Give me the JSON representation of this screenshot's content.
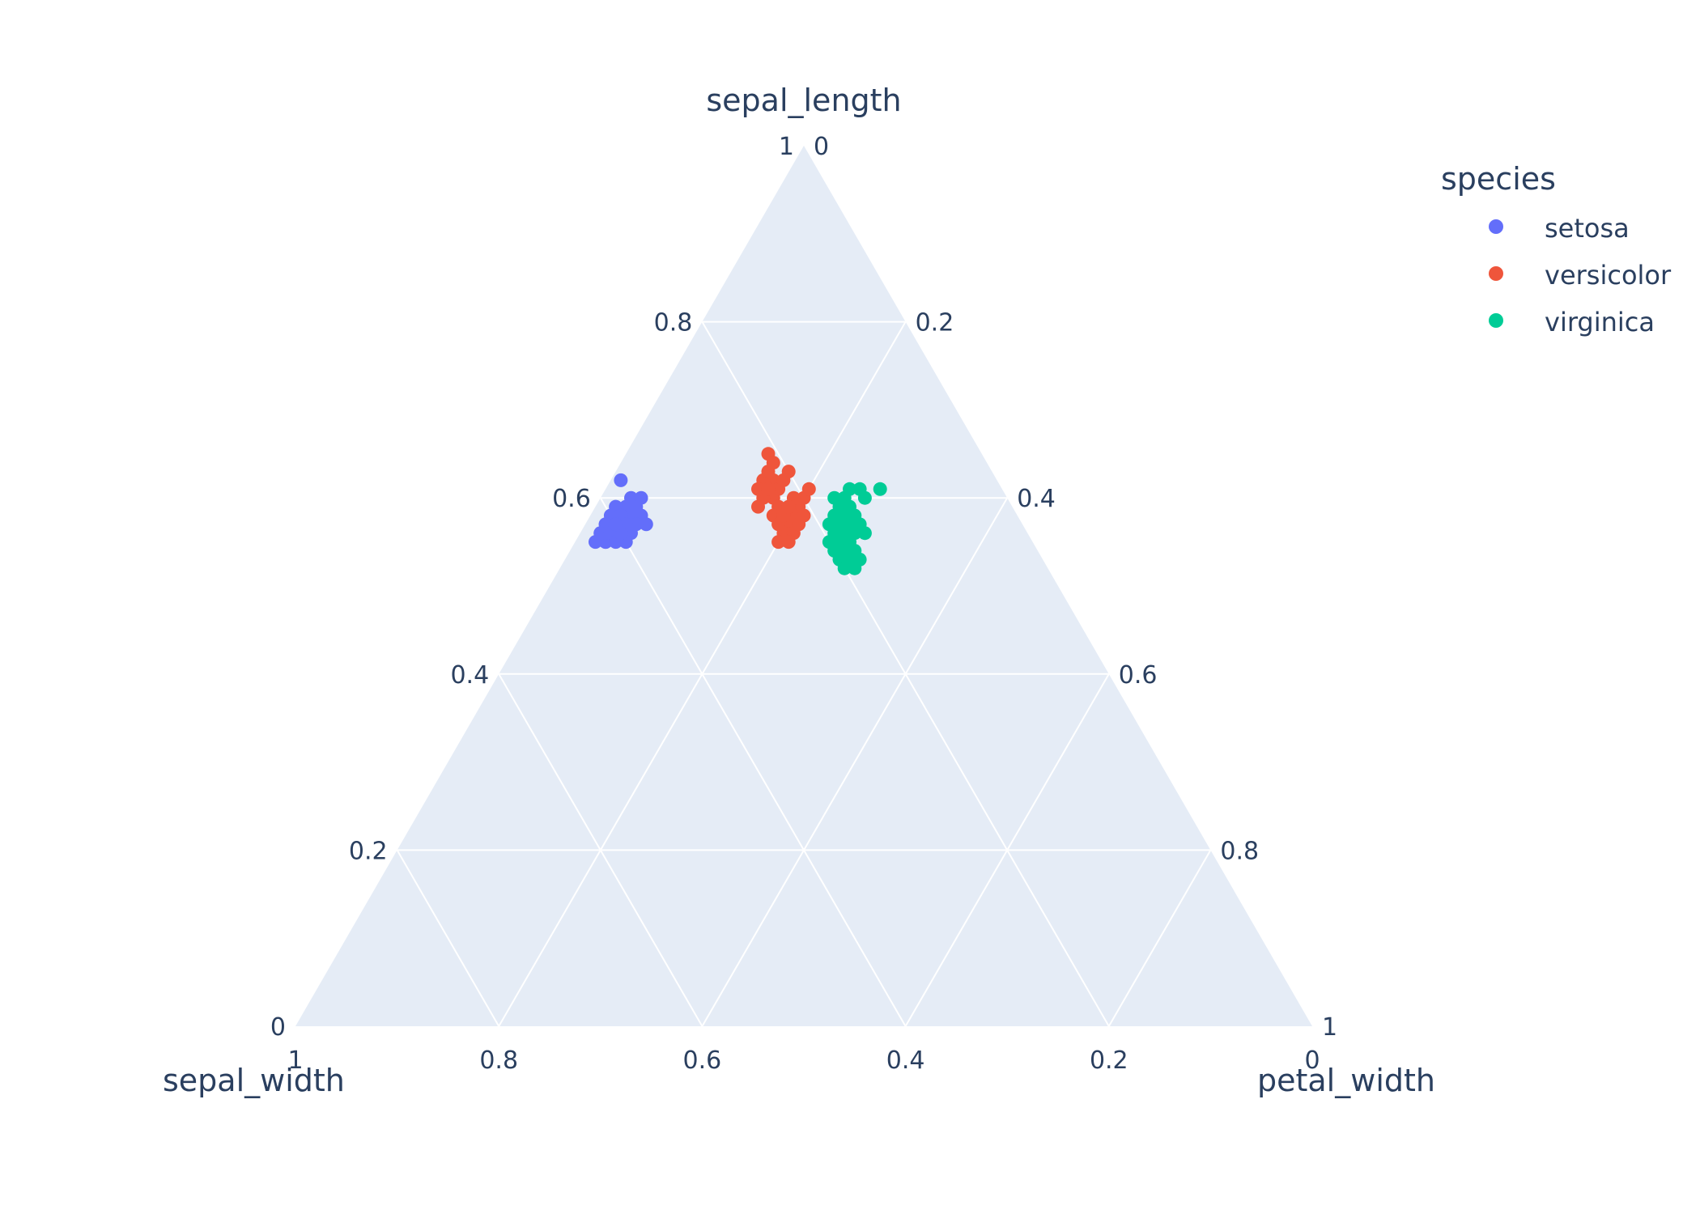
{
  "chart_data": {
    "type": "scatter",
    "subtype": "ternary",
    "axes": {
      "a": {
        "title": "sepal_length",
        "ticks": [
          "0",
          "0.2",
          "0.4",
          "0.6",
          "0.8",
          "1"
        ]
      },
      "b": {
        "title": "sepal_width",
        "ticks": [
          "1",
          "0.8",
          "0.6",
          "0.4",
          "0.2",
          "0"
        ]
      },
      "c": {
        "title": "petal_width",
        "ticks": [
          "0",
          "0.2",
          "0.4",
          "0.6",
          "0.8",
          "1"
        ]
      }
    },
    "grid": true,
    "plot_background": "#e5ecf6",
    "legend": {
      "title": "species",
      "placement": "top-right"
    },
    "series": [
      {
        "name": "setosa",
        "color": "#636efa",
        "points": [
          [
            0.62,
            0.37,
            0.01
          ],
          [
            0.6,
            0.37,
            0.03
          ],
          [
            0.58,
            0.38,
            0.04
          ],
          [
            0.57,
            0.4,
            0.03
          ],
          [
            0.56,
            0.4,
            0.04
          ],
          [
            0.55,
            0.42,
            0.03
          ],
          [
            0.57,
            0.39,
            0.04
          ],
          [
            0.56,
            0.41,
            0.03
          ],
          [
            0.58,
            0.4,
            0.02
          ],
          [
            0.59,
            0.38,
            0.03
          ],
          [
            0.56,
            0.42,
            0.02
          ],
          [
            0.57,
            0.41,
            0.02
          ],
          [
            0.55,
            0.42,
            0.03
          ],
          [
            0.57,
            0.4,
            0.03
          ],
          [
            0.56,
            0.41,
            0.03
          ],
          [
            0.58,
            0.37,
            0.05
          ],
          [
            0.59,
            0.39,
            0.02
          ],
          [
            0.57,
            0.37,
            0.06
          ],
          [
            0.59,
            0.37,
            0.04
          ],
          [
            0.56,
            0.39,
            0.05
          ],
          [
            0.58,
            0.38,
            0.04
          ],
          [
            0.55,
            0.43,
            0.02
          ],
          [
            0.57,
            0.38,
            0.05
          ],
          [
            0.58,
            0.39,
            0.03
          ],
          [
            0.56,
            0.4,
            0.04
          ],
          [
            0.6,
            0.36,
            0.04
          ],
          [
            0.57,
            0.41,
            0.02
          ],
          [
            0.55,
            0.4,
            0.05
          ],
          [
            0.56,
            0.42,
            0.02
          ],
          [
            0.58,
            0.39,
            0.03
          ],
          [
            0.57,
            0.39,
            0.04
          ],
          [
            0.56,
            0.41,
            0.03
          ],
          [
            0.55,
            0.41,
            0.04
          ],
          [
            0.56,
            0.4,
            0.04
          ],
          [
            0.57,
            0.4,
            0.03
          ]
        ]
      },
      {
        "name": "versicolor",
        "color": "#ef553b",
        "points": [
          [
            0.65,
            0.21,
            0.14
          ],
          [
            0.64,
            0.21,
            0.15
          ],
          [
            0.62,
            0.22,
            0.16
          ],
          [
            0.63,
            0.2,
            0.17
          ],
          [
            0.6,
            0.23,
            0.17
          ],
          [
            0.59,
            0.23,
            0.18
          ],
          [
            0.61,
            0.22,
            0.17
          ],
          [
            0.58,
            0.24,
            0.18
          ],
          [
            0.6,
            0.24,
            0.16
          ],
          [
            0.57,
            0.23,
            0.2
          ],
          [
            0.56,
            0.24,
            0.2
          ],
          [
            0.55,
            0.25,
            0.2
          ],
          [
            0.62,
            0.23,
            0.15
          ],
          [
            0.61,
            0.24,
            0.15
          ],
          [
            0.59,
            0.21,
            0.2
          ],
          [
            0.58,
            0.22,
            0.2
          ],
          [
            0.6,
            0.2,
            0.2
          ],
          [
            0.57,
            0.24,
            0.19
          ],
          [
            0.59,
            0.25,
            0.16
          ],
          [
            0.62,
            0.21,
            0.17
          ],
          [
            0.6,
            0.21,
            0.19
          ],
          [
            0.58,
            0.23,
            0.19
          ],
          [
            0.56,
            0.23,
            0.21
          ],
          [
            0.61,
            0.19,
            0.2
          ],
          [
            0.55,
            0.24,
            0.21
          ],
          [
            0.63,
            0.22,
            0.15
          ],
          [
            0.57,
            0.22,
            0.21
          ],
          [
            0.59,
            0.22,
            0.19
          ],
          [
            0.61,
            0.23,
            0.16
          ],
          [
            0.58,
            0.21,
            0.21
          ]
        ]
      },
      {
        "name": "virginica",
        "color": "#00cc96",
        "points": [
          [
            0.61,
            0.15,
            0.24
          ],
          [
            0.6,
            0.16,
            0.24
          ],
          [
            0.59,
            0.17,
            0.24
          ],
          [
            0.58,
            0.17,
            0.25
          ],
          [
            0.57,
            0.18,
            0.25
          ],
          [
            0.56,
            0.18,
            0.26
          ],
          [
            0.55,
            0.19,
            0.26
          ],
          [
            0.54,
            0.19,
            0.27
          ],
          [
            0.53,
            0.2,
            0.27
          ],
          [
            0.53,
            0.19,
            0.28
          ],
          [
            0.52,
            0.19,
            0.29
          ],
          [
            0.54,
            0.2,
            0.26
          ],
          [
            0.56,
            0.17,
            0.27
          ],
          [
            0.58,
            0.16,
            0.26
          ],
          [
            0.6,
            0.17,
            0.23
          ],
          [
            0.57,
            0.19,
            0.24
          ],
          [
            0.55,
            0.2,
            0.25
          ],
          [
            0.56,
            0.19,
            0.25
          ],
          [
            0.58,
            0.18,
            0.24
          ],
          [
            0.59,
            0.16,
            0.25
          ],
          [
            0.54,
            0.18,
            0.28
          ],
          [
            0.55,
            0.18,
            0.27
          ],
          [
            0.57,
            0.17,
            0.26
          ],
          [
            0.61,
            0.14,
            0.25
          ],
          [
            0.52,
            0.2,
            0.28
          ],
          [
            0.6,
            0.14,
            0.26
          ],
          [
            0.61,
            0.12,
            0.27
          ],
          [
            0.53,
            0.18,
            0.29
          ],
          [
            0.56,
            0.16,
            0.28
          ],
          [
            0.57,
            0.16,
            0.27
          ]
        ]
      }
    ]
  }
}
